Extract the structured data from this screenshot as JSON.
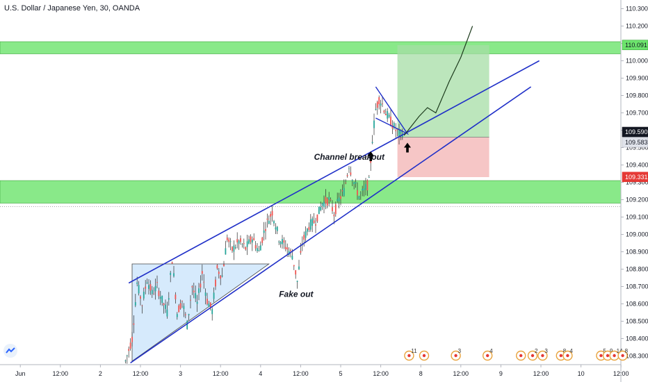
{
  "header": {
    "title": "U.S. Dollar / Japanese Yen, 30, OANDA"
  },
  "colors": {
    "up": "#26a69a",
    "down": "#ef5350",
    "zone": "#6ce46c",
    "target": "#a5dea5",
    "stop": "#f3b3b3",
    "trendline": "#1f2fc8",
    "triangle": "#cfe6fb",
    "last_price": "#131722",
    "stop_tag": "#e53935"
  },
  "chart_data": {
    "type": "candlestick",
    "title": "U.S. Dollar / Japanese Yen, 30, OANDA",
    "ylim": [
      108.25,
      110.35
    ],
    "y_ticks": [
      "110.300",
      "110.200",
      "110.100",
      "110.000",
      "109.900",
      "109.800",
      "109.700",
      "109.600",
      "109.500",
      "109.400",
      "109.300",
      "109.200",
      "109.100",
      "109.000",
      "108.900",
      "108.800",
      "108.700",
      "108.600",
      "108.500",
      "108.400",
      "108.300"
    ],
    "x_ticks": [
      {
        "label": "Jun",
        "i": 3
      },
      {
        "label": "12:00",
        "i": 27
      },
      {
        "label": "2",
        "i": 51
      },
      {
        "label": "12:00",
        "i": 75
      },
      {
        "label": "3",
        "i": 99
      },
      {
        "label": "12:00",
        "i": 123
      },
      {
        "label": "4",
        "i": 147
      },
      {
        "label": "12:00",
        "i": 171
      },
      {
        "label": "5",
        "i": 195
      },
      {
        "label": "12:00",
        "i": 219
      },
      {
        "label": "8",
        "i": 243
      },
      {
        "label": "12:00",
        "i": 267
      },
      {
        "label": "9",
        "i": 291
      },
      {
        "label": "12:00",
        "i": 315
      },
      {
        "label": "10",
        "i": 339
      },
      {
        "label": "12:00",
        "i": 363
      }
    ],
    "candle_range": [
      66,
      232
    ],
    "zones": [
      {
        "from": 110.04,
        "to": 110.11
      },
      {
        "from": 109.18,
        "to": 109.31
      }
    ],
    "position": {
      "entry": 109.56,
      "target": 110.09,
      "stop": 109.33,
      "i_from": 229,
      "i_to": 284
    },
    "trendlines": [
      {
        "i1": 68,
        "p1": 108.72,
        "i2": 314,
        "p2": 110.0
      },
      {
        "i1": 69,
        "p1": 108.26,
        "i2": 309,
        "p2": 109.85
      }
    ],
    "triangle": {
      "i1": 70,
      "i2": 152,
      "top": 108.83,
      "base_low": 108.27
    },
    "flag": [
      [
        216,
        109.85
      ],
      [
        235,
        109.58
      ],
      [
        216,
        109.67
      ]
    ],
    "projection": [
      [
        233,
        109.57
      ],
      [
        242,
        109.68
      ],
      [
        247,
        109.73
      ],
      [
        252,
        109.7
      ],
      [
        260,
        109.88
      ],
      [
        267,
        110.02
      ],
      [
        274,
        110.2
      ]
    ],
    "arrows": [
      {
        "i": 213,
        "p": 109.43,
        "dir": "up"
      },
      {
        "i": 235,
        "p": 109.48,
        "dir": "up"
      }
    ],
    "annotations": [
      {
        "text": "Channel breakout",
        "i": 179,
        "p": 109.43
      },
      {
        "text": "Fake out",
        "i": 158,
        "p": 108.64
      }
    ],
    "price_tags": [
      {
        "value": "110.091",
        "price": 110.091,
        "kind": "target"
      },
      {
        "value": "109.590",
        "price": 109.59,
        "kind": "last"
      },
      {
        "value": "109.583",
        "price": 109.53,
        "kind": "grey"
      },
      {
        "value": "109.331",
        "price": 109.331,
        "kind": "stop"
      }
    ],
    "series_points": [
      [
        66,
        108.27
      ],
      [
        70,
        108.4
      ],
      [
        73,
        108.72
      ],
      [
        76,
        108.6
      ],
      [
        79,
        108.74
      ],
      [
        82,
        108.66
      ],
      [
        85,
        108.7
      ],
      [
        88,
        108.62
      ],
      [
        91,
        108.55
      ],
      [
        94,
        108.86
      ],
      [
        97,
        108.55
      ],
      [
        100,
        108.62
      ],
      [
        103,
        108.48
      ],
      [
        106,
        108.7
      ],
      [
        109,
        108.6
      ],
      [
        112,
        108.78
      ],
      [
        115,
        108.62
      ],
      [
        118,
        108.56
      ],
      [
        121,
        108.8
      ],
      [
        124,
        108.76
      ],
      [
        127,
        108.98
      ],
      [
        130,
        108.91
      ],
      [
        134,
        108.96
      ],
      [
        138,
        108.92
      ],
      [
        142,
        108.98
      ],
      [
        146,
        108.9
      ],
      [
        150,
        109.05
      ],
      [
        154,
        109.13
      ],
      [
        158,
        108.98
      ],
      [
        162,
        108.93
      ],
      [
        166,
        108.88
      ],
      [
        169,
        108.73
      ],
      [
        172,
        108.95
      ],
      [
        176,
        109.05
      ],
      [
        180,
        109.08
      ],
      [
        184,
        109.18
      ],
      [
        188,
        109.2
      ],
      [
        191,
        109.12
      ],
      [
        194,
        109.2
      ],
      [
        197,
        109.25
      ],
      [
        200,
        109.4
      ],
      [
        203,
        109.3
      ],
      [
        206,
        109.22
      ],
      [
        209,
        109.25
      ],
      [
        212,
        109.3
      ],
      [
        214,
        109.55
      ],
      [
        216,
        109.72
      ],
      [
        218,
        109.78
      ],
      [
        220,
        109.75
      ],
      [
        222,
        109.7
      ],
      [
        225,
        109.65
      ],
      [
        228,
        109.6
      ],
      [
        231,
        109.57
      ],
      [
        232,
        109.59
      ]
    ]
  },
  "events": [
    {
      "i": 236,
      "badge": "11"
    },
    {
      "i": 245,
      "badge": ""
    },
    {
      "i": 264,
      "badge": "3"
    },
    {
      "i": 283,
      "badge": "4"
    },
    {
      "i": 303,
      "badge": ""
    },
    {
      "i": 310,
      "badge": "2"
    },
    {
      "i": 316,
      "badge": "3"
    },
    {
      "i": 327,
      "badge": "8"
    },
    {
      "i": 331,
      "badge": "4"
    },
    {
      "i": 351,
      "badge": "5"
    },
    {
      "i": 355,
      "badge": "9"
    },
    {
      "i": 359,
      "badge": "14"
    },
    {
      "i": 364,
      "badge": "8"
    }
  ]
}
